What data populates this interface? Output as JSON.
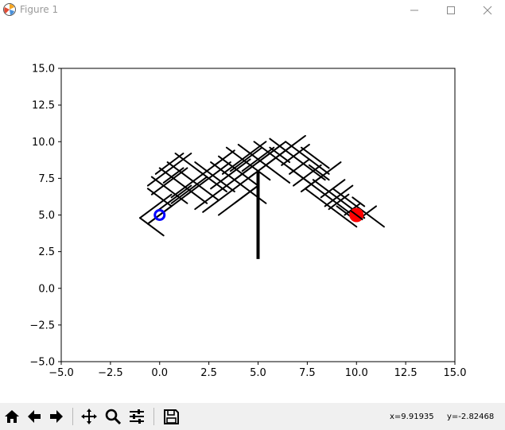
{
  "window": {
    "title": "Figure 1",
    "controls": [
      "minimize",
      "maximize",
      "close"
    ]
  },
  "chart_data": {
    "type": "line",
    "title": "",
    "xlabel": "",
    "ylabel": "",
    "xlim": [
      -5,
      15
    ],
    "ylim": [
      -5,
      15
    ],
    "xticks": [
      "−5.0",
      "−2.5",
      "0.0",
      "2.5",
      "5.0",
      "7.5",
      "10.0",
      "12.5",
      "15.0"
    ],
    "yticks": [
      "−5.0",
      "−2.5",
      "0.0",
      "2.5",
      "5.0",
      "7.5",
      "10.0",
      "12.5",
      "15.0"
    ],
    "grid": false,
    "start_point": {
      "x": 0.0,
      "y": 5.0,
      "color": "#0000ff"
    },
    "goal_point": {
      "x": 10.0,
      "y": 5.0,
      "color": "#ff0000"
    },
    "obstacle": {
      "x": 5.0,
      "y_from": 2.0,
      "y_to": 8.0,
      "color": "#000000"
    },
    "tree_edges": [
      [
        [
          -1.0,
          4.8
        ],
        [
          0.6,
          6.4
        ]
      ],
      [
        [
          -0.6,
          4.4
        ],
        [
          1.6,
          6.6
        ]
      ],
      [
        [
          -0.4,
          6.4
        ],
        [
          1.4,
          8.2
        ]
      ],
      [
        [
          -0.6,
          7.0
        ],
        [
          1.6,
          9.2
        ]
      ],
      [
        [
          -0.2,
          7.8
        ],
        [
          1.2,
          9.2
        ]
      ],
      [
        [
          0.6,
          6.2
        ],
        [
          3.0,
          8.6
        ]
      ],
      [
        [
          1.4,
          6.4
        ],
        [
          3.6,
          8.6
        ]
      ],
      [
        [
          2.2,
          5.2
        ],
        [
          4.8,
          7.8
        ]
      ],
      [
        [
          3.0,
          5.0
        ],
        [
          5.0,
          7.0
        ]
      ],
      [
        [
          3.2,
          7.8
        ],
        [
          5.4,
          10.0
        ]
      ],
      [
        [
          3.8,
          7.4
        ],
        [
          6.2,
          9.8
        ]
      ],
      [
        [
          4.6,
          7.6
        ],
        [
          6.8,
          9.8
        ]
      ],
      [
        [
          5.4,
          8.4
        ],
        [
          7.4,
          10.4
        ]
      ],
      [
        [
          6.6,
          7.8
        ],
        [
          7.6,
          8.8
        ]
      ],
      [
        [
          7.4,
          6.8
        ],
        [
          8.2,
          7.6
        ]
      ],
      [
        [
          8.6,
          5.4
        ],
        [
          9.6,
          6.4
        ]
      ],
      [
        [
          9.4,
          5.0
        ],
        [
          10.2,
          5.8
        ]
      ],
      [
        [
          10.0,
          4.6
        ],
        [
          11.0,
          5.6
        ]
      ],
      [
        [
          -0.2,
          5.2
        ],
        [
          1.6,
          7.0
        ]
      ],
      [
        [
          0.2,
          7.2
        ],
        [
          1.2,
          8.2
        ]
      ],
      [
        [
          -1.0,
          4.8
        ],
        [
          0.2,
          3.6
        ]
      ],
      [
        [
          -0.6,
          4.4
        ],
        [
          0.6,
          5.6
        ]
      ],
      [
        [
          -0.6,
          6.8
        ],
        [
          0.6,
          5.6
        ]
      ],
      [
        [
          -0.4,
          7.6
        ],
        [
          1.4,
          5.8
        ]
      ],
      [
        [
          0.0,
          8.2
        ],
        [
          2.4,
          5.8
        ]
      ],
      [
        [
          0.4,
          8.6
        ],
        [
          3.0,
          6.0
        ]
      ],
      [
        [
          0.8,
          9.2
        ],
        [
          3.4,
          6.6
        ]
      ],
      [
        [
          1.8,
          8.6
        ],
        [
          3.8,
          6.6
        ]
      ],
      [
        [
          2.6,
          8.6
        ],
        [
          5.4,
          5.8
        ]
      ],
      [
        [
          3.0,
          9.0
        ],
        [
          5.0,
          7.0
        ]
      ],
      [
        [
          3.4,
          9.6
        ],
        [
          5.6,
          7.4
        ]
      ],
      [
        [
          4.0,
          9.8
        ],
        [
          6.6,
          7.2
        ]
      ],
      [
        [
          4.8,
          10.0
        ],
        [
          7.6,
          7.2
        ]
      ],
      [
        [
          5.6,
          10.2
        ],
        [
          8.4,
          7.4
        ]
      ],
      [
        [
          6.4,
          10.0
        ],
        [
          8.6,
          7.8
        ]
      ],
      [
        [
          7.2,
          9.6
        ],
        [
          8.6,
          8.2
        ]
      ],
      [
        [
          2.8,
          8.4
        ],
        [
          3.8,
          9.4
        ]
      ],
      [
        [
          5.6,
          9.6
        ],
        [
          6.6,
          8.6
        ]
      ],
      [
        [
          7.8,
          7.4
        ],
        [
          10.4,
          4.8
        ]
      ],
      [
        [
          6.6,
          8.2
        ],
        [
          9.8,
          5.0
        ]
      ],
      [
        [
          7.6,
          8.4
        ],
        [
          8.6,
          7.4
        ]
      ],
      [
        [
          9.0,
          5.6
        ],
        [
          9.8,
          4.8
        ]
      ],
      [
        [
          9.8,
          5.4
        ],
        [
          10.4,
          4.8
        ]
      ],
      [
        [
          8.8,
          6.8
        ],
        [
          11.4,
          4.2
        ]
      ],
      [
        [
          7.4,
          6.8
        ],
        [
          10.0,
          4.2
        ]
      ],
      [
        [
          9.8,
          6.2
        ],
        [
          10.4,
          5.6
        ]
      ],
      [
        [
          1.8,
          5.4
        ],
        [
          4.8,
          8.4
        ]
      ],
      [
        [
          2.6,
          6.8
        ],
        [
          4.6,
          8.8
        ]
      ],
      [
        [
          0.6,
          5.8
        ],
        [
          2.4,
          7.6
        ]
      ],
      [
        [
          3.6,
          8.0
        ],
        [
          5.2,
          9.6
        ]
      ],
      [
        [
          4.2,
          8.0
        ],
        [
          5.8,
          9.6
        ]
      ],
      [
        [
          6.2,
          8.4
        ],
        [
          7.6,
          9.8
        ]
      ],
      [
        [
          5.0,
          8.6
        ],
        [
          6.4,
          10.0
        ]
      ],
      [
        [
          3.8,
          5.8
        ],
        [
          5.0,
          7.0
        ]
      ],
      [
        [
          6.8,
          7.0
        ],
        [
          8.2,
          8.4
        ]
      ],
      [
        [
          7.2,
          6.6
        ],
        [
          9.2,
          8.6
        ]
      ],
      [
        [
          8.2,
          6.2
        ],
        [
          9.4,
          7.4
        ]
      ],
      [
        [
          8.4,
          5.6
        ],
        [
          9.8,
          7.0
        ]
      ]
    ]
  },
  "toolbar": {
    "buttons": [
      "home-icon",
      "back-icon",
      "forward-icon",
      "pan-icon",
      "zoom-icon",
      "configure-subplots-icon",
      "save-icon"
    ],
    "coord_x": "x=9.91935",
    "coord_y": "y=-2.82468"
  }
}
